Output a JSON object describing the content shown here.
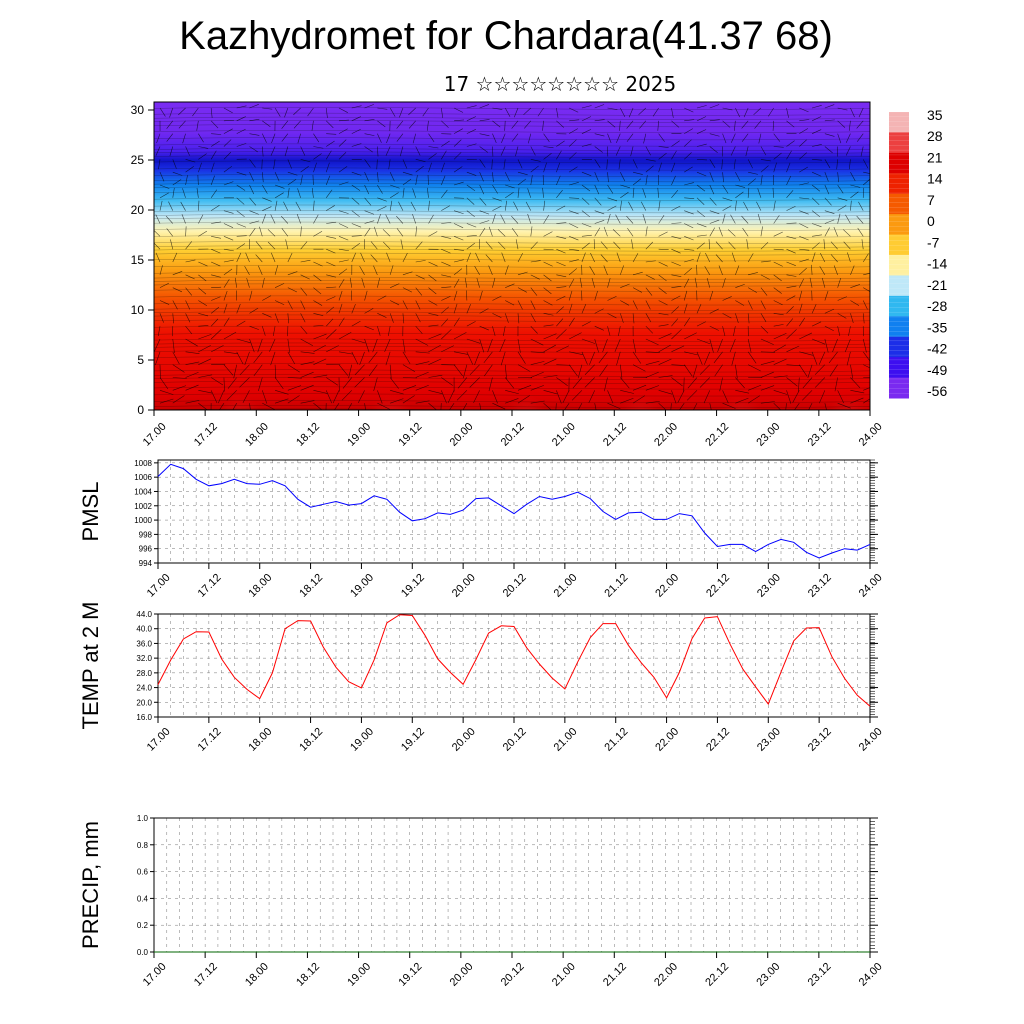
{
  "header": {
    "title": "Kazhydromet for Chardara(41.37 68)",
    "subtitle": "17 ☆☆☆☆☆☆☆☆ 2025"
  },
  "chart_data": [
    {
      "type": "heatmap",
      "name": "temperature-wind-cross-section",
      "x_tick_labels": [
        "17.00",
        "17.12",
        "18.00",
        "18.12",
        "19.00",
        "19.12",
        "20.00",
        "20.12",
        "21.00",
        "21.12",
        "22.00",
        "22.12",
        "23.00",
        "23.12",
        "24.00"
      ],
      "y_tick_labels": [
        "0",
        "5",
        "10",
        "15",
        "20",
        "25",
        "30"
      ],
      "ylim": [
        0,
        30.8
      ],
      "colorbar_labels": [
        "35",
        "28",
        "21",
        "14",
        "7",
        "0",
        "-7",
        "-14",
        "-21",
        "-28",
        "-35",
        "-42",
        "-49",
        "-56"
      ],
      "colorbar_colors": [
        "#f4b4b4",
        "#ec4040",
        "#dd0000",
        "#ee2200",
        "#f55a00",
        "#fb9a10",
        "#ffcc33",
        "#fff0a0",
        "#bfe8f8",
        "#30b8f0",
        "#1080f0",
        "#1c2ee8",
        "#3d0ff0",
        "#7a2af0"
      ]
    },
    {
      "type": "line",
      "name": "pmsl",
      "ylabel": "PMSL",
      "x_tick_labels": [
        "17.00",
        "17.12",
        "18.00",
        "18.12",
        "19.00",
        "19.12",
        "20.00",
        "20.12",
        "21.00",
        "21.12",
        "22.00",
        "22.12",
        "23.00",
        "23.12",
        "24.00"
      ],
      "y_tick_labels": [
        "994",
        "996",
        "998",
        "1000",
        "1002",
        "1004",
        "1006",
        "1008"
      ],
      "ylim": [
        994,
        1008.4
      ],
      "xlim": [
        0,
        168
      ],
      "color": "#0000ff",
      "x": [
        0,
        3,
        6,
        9,
        12,
        15,
        18,
        21,
        24,
        27,
        30,
        33,
        36,
        39,
        42,
        45,
        48,
        51,
        54,
        57,
        60,
        63,
        66,
        69,
        72,
        75,
        78,
        81,
        84,
        87,
        90,
        93,
        96,
        99,
        102,
        105,
        108,
        111,
        114,
        117,
        120,
        123,
        126,
        129,
        132,
        135,
        138,
        141,
        144,
        147,
        150,
        153,
        156,
        159,
        162,
        165,
        168
      ],
      "values": [
        1006.1,
        1007.8,
        1007.2,
        1005.7,
        1004.8,
        1005.1,
        1005.7,
        1005.1,
        1005.0,
        1005.5,
        1004.8,
        1002.9,
        1001.8,
        1002.2,
        1002.6,
        1002.1,
        1002.3,
        1003.4,
        1002.9,
        1001.1,
        999.9,
        1000.2,
        1001.0,
        1000.8,
        1001.4,
        1003.0,
        1003.1,
        1002.0,
        1000.9,
        1002.2,
        1003.3,
        1002.9,
        1003.3,
        1003.9,
        1003.0,
        1001.2,
        1000.1,
        1001.0,
        1001.1,
        1000.1,
        1000.1,
        1000.9,
        1000.6,
        998.2,
        996.3,
        996.6,
        996.6,
        995.6,
        996.6,
        997.3,
        996.9,
        995.5,
        994.7,
        995.4,
        996.0,
        995.8,
        996.6
      ]
    },
    {
      "type": "line",
      "name": "temp-2m",
      "ylabel": "TEMP at 2 M",
      "x_tick_labels": [
        "17.00",
        "17.12",
        "18.00",
        "18.12",
        "19.00",
        "19.12",
        "20.00",
        "20.12",
        "21.00",
        "21.12",
        "22.00",
        "22.12",
        "23.00",
        "23.12",
        "24.00"
      ],
      "y_tick_labels": [
        "16.0",
        "20.0",
        "24.0",
        "28.0",
        "32.0",
        "36.0",
        "40.0",
        "44.0"
      ],
      "ylim": [
        16,
        44
      ],
      "xlim": [
        0,
        168
      ],
      "color": "#ff0000",
      "x": [
        0,
        3,
        6,
        9,
        12,
        15,
        18,
        21,
        24,
        27,
        30,
        33,
        36,
        39,
        42,
        45,
        48,
        51,
        54,
        57,
        60,
        63,
        66,
        69,
        72,
        75,
        78,
        81,
        84,
        87,
        90,
        93,
        96,
        99,
        102,
        105,
        108,
        111,
        114,
        117,
        120,
        123,
        126,
        129,
        132,
        135,
        138,
        141,
        144,
        147,
        150,
        153,
        156,
        159,
        162,
        165,
        168
      ],
      "values": [
        24.8,
        31.5,
        37.2,
        39.2,
        39.1,
        31.8,
        26.8,
        23.5,
        21.0,
        28.0,
        40.0,
        42.2,
        42.1,
        35.0,
        29.5,
        25.6,
        23.9,
        31.5,
        41.6,
        43.8,
        43.6,
        38.2,
        31.8,
        28.1,
        24.9,
        31.6,
        38.8,
        40.8,
        40.6,
        34.8,
        30.4,
        26.6,
        23.6,
        30.9,
        37.6,
        41.4,
        41.4,
        35.5,
        30.8,
        26.8,
        21.2,
        28.1,
        37.3,
        42.9,
        43.3,
        35.8,
        29.0,
        24.2,
        19.5,
        28.2,
        36.7,
        40.2,
        40.3,
        32.4,
        26.5,
        21.9,
        18.9
      ]
    },
    {
      "type": "line",
      "name": "precip",
      "ylabel": "PRECIP, mm",
      "x_tick_labels": [
        "17.00",
        "17.12",
        "18.00",
        "18.12",
        "19.00",
        "19.12",
        "20.00",
        "20.12",
        "21.00",
        "21.12",
        "22.00",
        "22.12",
        "23.00",
        "23.12",
        "24.00"
      ],
      "y_tick_labels": [
        "0.0",
        "0.2",
        "0.4",
        "0.6",
        "0.8",
        "1.0"
      ],
      "ylim": [
        0,
        1
      ],
      "xlim": [
        0,
        168
      ],
      "color": "#006400",
      "x": [
        0,
        168
      ],
      "values": [
        0,
        0
      ]
    }
  ]
}
